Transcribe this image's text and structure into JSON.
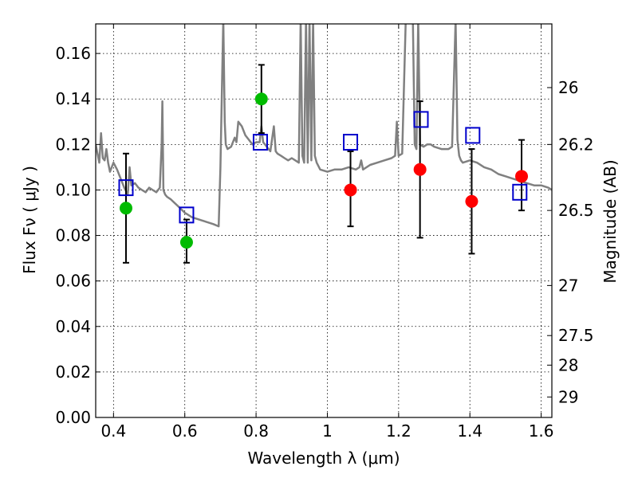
{
  "chart_data": {
    "type": "scatter",
    "xlabel": "Wavelength  λ (μm)",
    "ylabel": "Flux  Fν  ( μJy )",
    "y2label": "Magnitude (AB)",
    "xlim": [
      0.35,
      1.63
    ],
    "ylim": [
      0.0,
      0.173
    ],
    "x_ticks": [
      0.4,
      0.6,
      0.8,
      1.0,
      1.2,
      1.4,
      1.6
    ],
    "x_tick_labels": [
      "0.4",
      "0.6",
      "0.8",
      "1",
      "1.2",
      "1.4",
      "1.6"
    ],
    "y_ticks": [
      0.0,
      0.02,
      0.04,
      0.06,
      0.08,
      0.1,
      0.12,
      0.14,
      0.16
    ],
    "y_tick_labels": [
      "0.00",
      "0.02",
      "0.04",
      "0.06",
      "0.08",
      "0.10",
      "0.12",
      "0.14",
      "0.16"
    ],
    "y2_ticks": [
      {
        "label": "26",
        "flux": 0.145
      },
      {
        "label": "26.2",
        "flux": 0.12
      },
      {
        "label": "26.5",
        "flux": 0.091
      },
      {
        "label": "27",
        "flux": 0.058
      },
      {
        "label": "27.5",
        "flux": 0.036
      },
      {
        "label": "28",
        "flux": 0.023
      },
      {
        "label": "29",
        "flux": 0.009
      }
    ],
    "grid": true,
    "colors": {
      "spectrum": "#808080",
      "green_points": "#00bb00",
      "red_points": "#ff0000",
      "model_boxes": "#0000cc",
      "errorbars": "#000000"
    },
    "series": [
      {
        "kind": "spectrum-line",
        "x": [
          0.35,
          0.36,
          0.365,
          0.37,
          0.375,
          0.38,
          0.385,
          0.39,
          0.4,
          0.41,
          0.42,
          0.43,
          0.44,
          0.445,
          0.45,
          0.46,
          0.47,
          0.48,
          0.49,
          0.5,
          0.51,
          0.52,
          0.53,
          0.535,
          0.537,
          0.54,
          0.545,
          0.55,
          0.56,
          0.58,
          0.6,
          0.62,
          0.64,
          0.66,
          0.68,
          0.695,
          0.7,
          0.705,
          0.708,
          0.712,
          0.715,
          0.72,
          0.73,
          0.74,
          0.745,
          0.75,
          0.76,
          0.77,
          0.78,
          0.79,
          0.8,
          0.81,
          0.815,
          0.82,
          0.825,
          0.83,
          0.84,
          0.85,
          0.855,
          0.86,
          0.87,
          0.88,
          0.89,
          0.9,
          0.91,
          0.92,
          0.925,
          0.93,
          0.935,
          0.94,
          0.945,
          0.95,
          0.955,
          0.96,
          0.965,
          0.97,
          0.98,
          1.0,
          1.02,
          1.04,
          1.06,
          1.08,
          1.09,
          1.095,
          1.1,
          1.12,
          1.14,
          1.16,
          1.18,
          1.19,
          1.195,
          1.2,
          1.21,
          1.22,
          1.23,
          1.24,
          1.245,
          1.25,
          1.255,
          1.26,
          1.27,
          1.28,
          1.29,
          1.3,
          1.32,
          1.34,
          1.35,
          1.36,
          1.365,
          1.37,
          1.375,
          1.38,
          1.4,
          1.42,
          1.44,
          1.46,
          1.48,
          1.5,
          1.52,
          1.54,
          1.56,
          1.58,
          1.6,
          1.62,
          1.63
        ],
        "y": [
          0.12,
          0.112,
          0.125,
          0.114,
          0.113,
          0.118,
          0.112,
          0.108,
          0.112,
          0.109,
          0.105,
          0.101,
          0.098,
          0.11,
          0.102,
          0.103,
          0.101,
          0.1,
          0.099,
          0.101,
          0.1,
          0.099,
          0.101,
          0.12,
          0.139,
          0.1,
          0.098,
          0.097,
          0.096,
          0.093,
          0.09,
          0.088,
          0.087,
          0.086,
          0.085,
          0.084,
          0.11,
          0.15,
          0.175,
          0.13,
          0.12,
          0.118,
          0.119,
          0.123,
          0.121,
          0.13,
          0.128,
          0.124,
          0.122,
          0.12,
          0.121,
          0.121,
          0.128,
          0.121,
          0.12,
          0.119,
          0.117,
          0.128,
          0.117,
          0.116,
          0.115,
          0.114,
          0.113,
          0.114,
          0.113,
          0.112,
          0.175,
          0.115,
          0.112,
          0.175,
          0.112,
          0.175,
          0.113,
          0.175,
          0.115,
          0.112,
          0.109,
          0.108,
          0.109,
          0.109,
          0.11,
          0.109,
          0.11,
          0.113,
          0.109,
          0.111,
          0.112,
          0.113,
          0.114,
          0.115,
          0.13,
          0.115,
          0.116,
          0.175,
          0.175,
          0.175,
          0.12,
          0.118,
          0.175,
          0.12,
          0.119,
          0.12,
          0.12,
          0.119,
          0.118,
          0.118,
          0.119,
          0.175,
          0.122,
          0.115,
          0.113,
          0.112,
          0.113,
          0.112,
          0.11,
          0.109,
          0.107,
          0.106,
          0.105,
          0.104,
          0.103,
          0.102,
          0.102,
          0.101,
          0.1
        ]
      },
      {
        "kind": "errorbar-points",
        "marker": "circle",
        "color": "green",
        "x": [
          0.435,
          0.605,
          0.815
        ],
        "y": [
          0.092,
          0.077,
          0.14
        ],
        "yerr_low": [
          0.068,
          0.068,
          0.125
        ],
        "yerr_high": [
          0.116,
          0.087,
          0.155
        ]
      },
      {
        "kind": "errorbar-points",
        "marker": "circle",
        "color": "red",
        "x": [
          1.065,
          1.26,
          1.405,
          1.545
        ],
        "y": [
          0.1,
          0.109,
          0.095,
          0.106
        ],
        "yerr_low": [
          0.084,
          0.079,
          0.072,
          0.091
        ],
        "yerr_high": [
          0.117,
          0.139,
          0.118,
          0.122
        ]
      },
      {
        "kind": "model-boxes",
        "marker": "square",
        "color": "blue",
        "x": [
          0.435,
          0.605,
          0.812,
          1.065,
          1.263,
          1.408,
          1.54
        ],
        "y": [
          0.101,
          0.089,
          0.121,
          0.121,
          0.131,
          0.124,
          0.099
        ]
      }
    ]
  }
}
